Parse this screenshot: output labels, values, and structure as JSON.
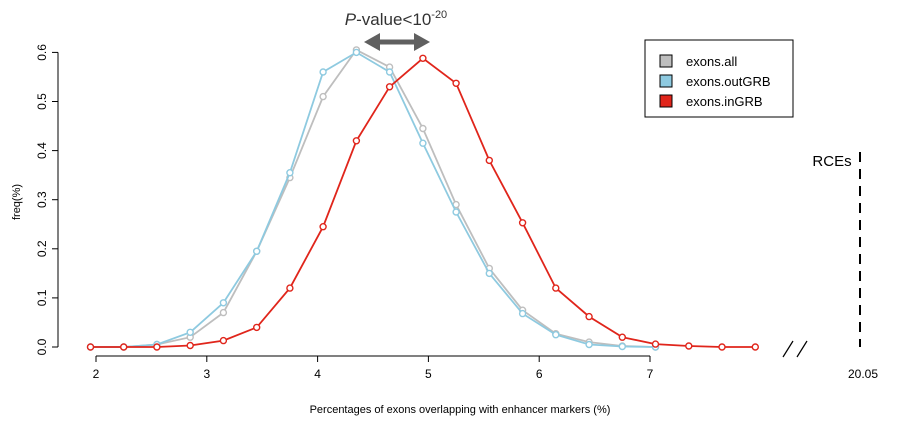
{
  "chart_data": {
    "type": "line",
    "xlabel": "Percentages of exons overlapping with enhancer markers (%)",
    "ylabel": "freq(%)",
    "xlim": [
      1.8,
      7.9
    ],
    "ylim": [
      0,
      0.6
    ],
    "x_ticks": [
      "2",
      "3",
      "4",
      "5",
      "6",
      "7"
    ],
    "y_ticks": [
      "0.0",
      "0.1",
      "0.2",
      "0.3",
      "0.4",
      "0.5",
      "0.6"
    ],
    "extra_tick": {
      "label": "20.05",
      "value": 20.05
    },
    "annotation_top": {
      "italic": "P",
      "text": "-value<10",
      "sup": "-20"
    },
    "vline_label": "RCEs",
    "legend": [
      "exons.all",
      "exons.outGRB",
      "exons.inGRB"
    ],
    "series": [
      {
        "name": "exons.all",
        "color": "#bebebe",
        "x": [
          1.95,
          2.25,
          2.55,
          2.85,
          3.15,
          3.45,
          3.75,
          4.05,
          4.35,
          4.65,
          4.95,
          5.25,
          5.55,
          5.85,
          6.15,
          6.45,
          6.75,
          7.05
        ],
        "y": [
          0.0,
          0.0,
          0.005,
          0.02,
          0.07,
          0.195,
          0.345,
          0.51,
          0.605,
          0.57,
          0.445,
          0.29,
          0.16,
          0.075,
          0.027,
          0.01,
          0.002,
          0.0
        ]
      },
      {
        "name": "exons.outGRB",
        "color": "#8ecae0",
        "x": [
          1.95,
          2.25,
          2.55,
          2.85,
          3.15,
          3.45,
          3.75,
          4.05,
          4.35,
          4.65,
          4.95,
          5.25,
          5.55,
          5.85,
          6.15,
          6.45,
          6.75,
          7.05
        ],
        "y": [
          0.0,
          0.0,
          0.005,
          0.03,
          0.09,
          0.195,
          0.355,
          0.56,
          0.6,
          0.56,
          0.415,
          0.275,
          0.15,
          0.068,
          0.025,
          0.005,
          0.001,
          0.0
        ]
      },
      {
        "name": "exons.inGRB",
        "color": "#e0251b",
        "x": [
          1.95,
          2.25,
          2.55,
          2.85,
          3.15,
          3.45,
          3.75,
          4.05,
          4.35,
          4.65,
          4.95,
          5.25,
          5.55,
          5.85,
          6.15,
          6.45,
          6.75,
          7.05,
          7.35,
          7.65,
          7.95
        ],
        "y": [
          0.0,
          0.0,
          0.0,
          0.003,
          0.013,
          0.04,
          0.12,
          0.245,
          0.42,
          0.53,
          0.588,
          0.537,
          0.38,
          0.253,
          0.12,
          0.062,
          0.02,
          0.006,
          0.002,
          0.0,
          0.0
        ]
      }
    ]
  }
}
